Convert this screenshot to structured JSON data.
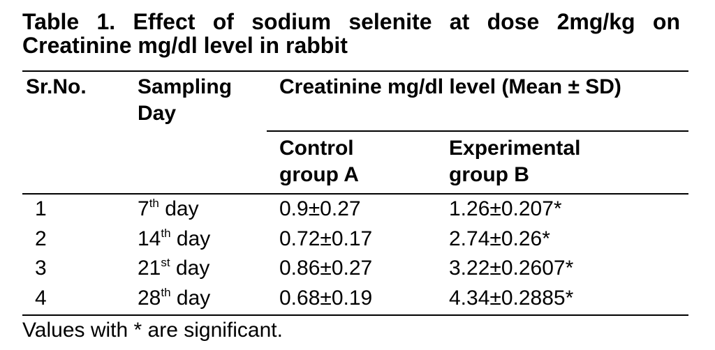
{
  "title": "Table 1. Effect of sodium selenite at dose 2mg/kg on Creatinine mg/dl level in rabbit",
  "table": {
    "headers": {
      "sr_no": "Sr.No.",
      "sampling_day": "Sampling Day",
      "creatinine": "Creatinine mg/dl level (Mean ± SD)",
      "control": "Control group A",
      "experimental": "Experimental group B"
    },
    "rows": [
      {
        "sr": "1",
        "day": [
          "7",
          "th",
          "day"
        ],
        "control": "0.9±0.27",
        "experimental": "1.26±0.207*"
      },
      {
        "sr": "2",
        "day": [
          "14",
          "th",
          "day"
        ],
        "control": "0.72±0.17",
        "experimental": "2.74±0.26*"
      },
      {
        "sr": "3",
        "day": [
          "21",
          "st",
          "day"
        ],
        "control": "0.86±0.27",
        "experimental": "3.22±0.2607*"
      },
      {
        "sr": "4",
        "day": [
          "28",
          "th",
          "day"
        ],
        "control": "0.68±0.19",
        "experimental": "4.34±0.2885*"
      }
    ]
  },
  "footnote": "Values with * are significant."
}
